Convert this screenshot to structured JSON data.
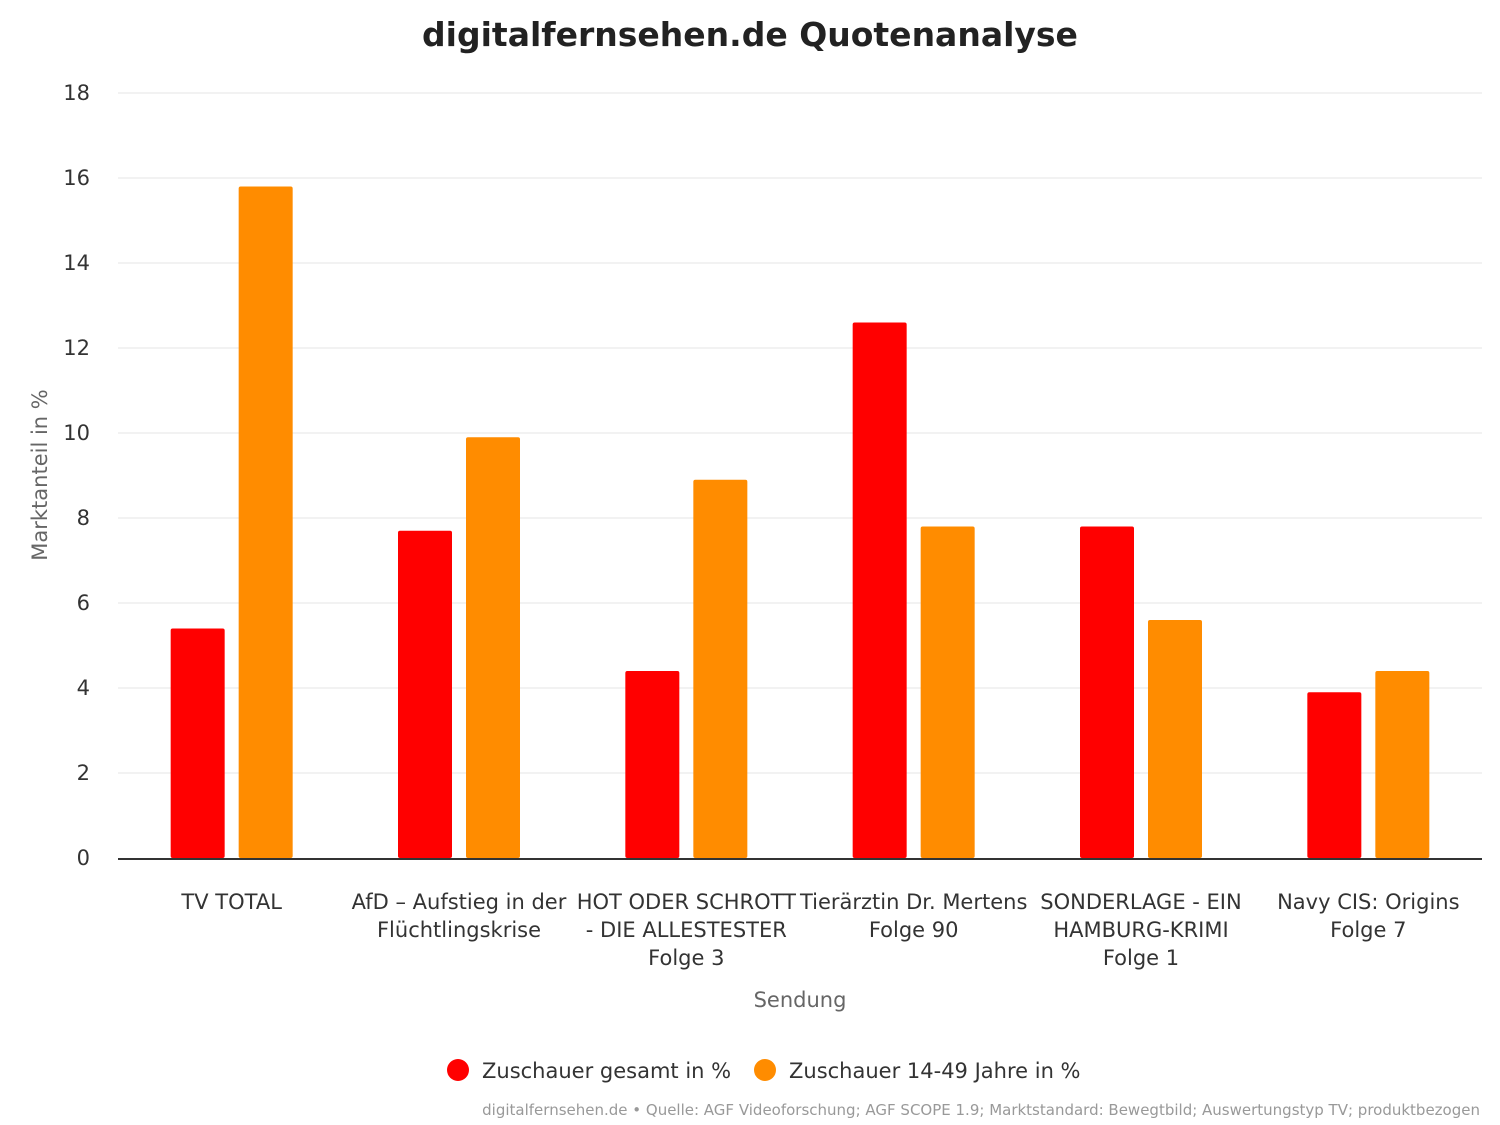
{
  "chart_data": {
    "type": "bar",
    "title": "digitalfernsehen.de Quotenanalyse",
    "xlabel": "Sendung",
    "ylabel": "Marktanteil in %",
    "ylim": [
      0,
      18
    ],
    "yticks": [
      "0",
      "2",
      "4",
      "6",
      "8",
      "10",
      "12",
      "14",
      "16",
      "18"
    ],
    "categories": [
      [
        "TV TOTAL"
      ],
      [
        "AfD – Aufstieg in der",
        "Flüchtlingskrise"
      ],
      [
        "HOT ODER SCHROTT",
        "- DIE ALLESTESTER",
        "Folge 3"
      ],
      [
        "Tierärztin Dr. Mertens",
        "Folge 90"
      ],
      [
        "SONDERLAGE - EIN",
        "HAMBURG-KRIMI",
        "Folge 1"
      ],
      [
        "Navy CIS: Origins",
        "Folge 7"
      ]
    ],
    "series": [
      {
        "name": "Zuschauer gesamt in %",
        "color": "#ff0000",
        "values": [
          5.4,
          7.7,
          4.4,
          12.6,
          7.8,
          3.9
        ]
      },
      {
        "name": "Zuschauer 14-49 Jahre in %",
        "color": "#ff8c00",
        "values": [
          15.8,
          9.9,
          8.9,
          7.8,
          5.6,
          4.4
        ]
      }
    ],
    "grid": true,
    "legend": "bottom"
  },
  "credit": "digitalfernsehen.de • Quelle: AGF Videoforschung; AGF SCOPE 1.9; Marktstandard: Bewegtbild; Auswertungstyp TV; produktbezogen"
}
